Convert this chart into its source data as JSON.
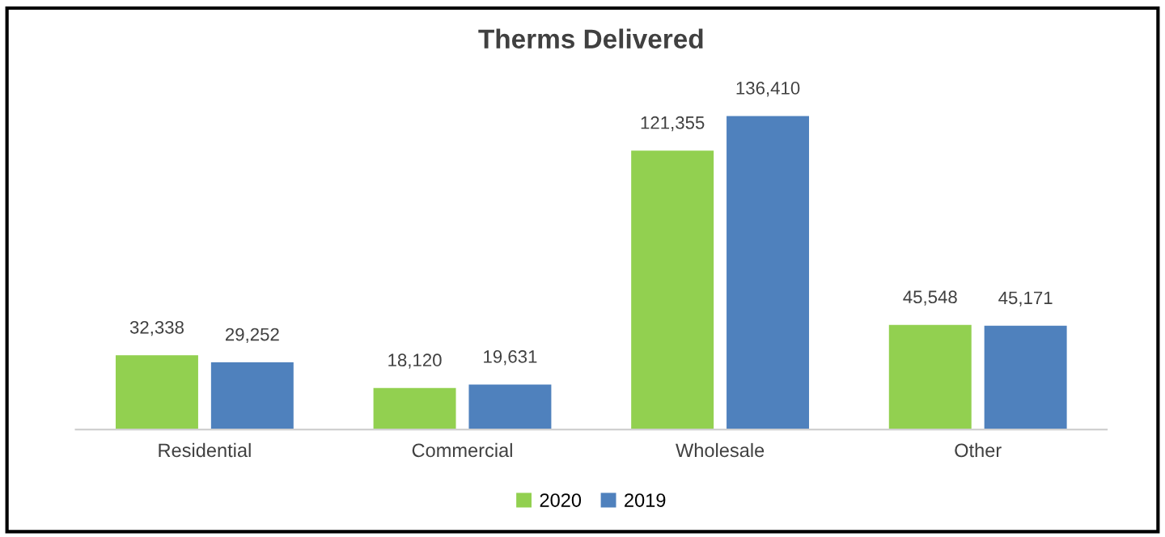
{
  "chart_data": {
    "type": "bar",
    "title": "Therms Delivered",
    "categories": [
      "Residential",
      "Commercial",
      "Wholesale",
      "Other"
    ],
    "series": [
      {
        "name": "2020",
        "color": "#92d050",
        "values": [
          32338,
          18120,
          121355,
          45548
        ],
        "value_labels": [
          "32,338",
          "18,120",
          "121,355",
          "45,548"
        ]
      },
      {
        "name": "2019",
        "color": "#4f81bd",
        "values": [
          29252,
          19631,
          136410,
          45171
        ],
        "value_labels": [
          "29,252",
          "19,631",
          "136,410",
          "45,171"
        ]
      }
    ],
    "legend": "bottom"
  }
}
